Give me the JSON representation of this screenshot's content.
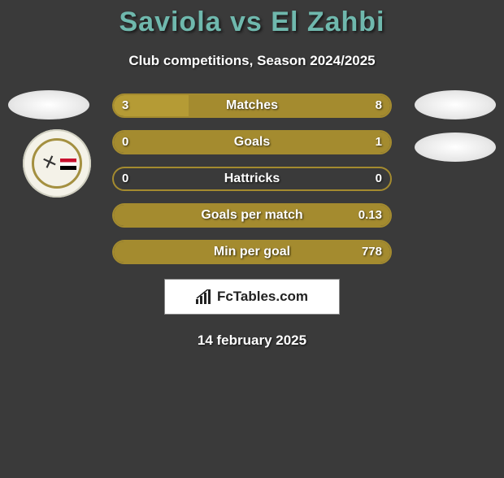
{
  "title": "Saviola vs El Zahbi",
  "subtitle": "Club competitions, Season 2024/2025",
  "colors": {
    "heading": "#6fb8ad",
    "primary": "#a48b2f",
    "primary_light": "#b59b35",
    "background": "#3a3a3a",
    "track_bg": "#3a3a3a"
  },
  "bars": [
    {
      "label": "Matches",
      "left": "3",
      "right": "8",
      "left_pct": 27,
      "right_pct": 73
    },
    {
      "label": "Goals",
      "left": "0",
      "right": "1",
      "left_pct": 0,
      "right_pct": 100
    },
    {
      "label": "Hattricks",
      "left": "0",
      "right": "0",
      "left_pct": 0,
      "right_pct": 0
    },
    {
      "label": "Goals per match",
      "left": "",
      "right": "0.13",
      "left_pct": 0,
      "right_pct": 100
    },
    {
      "label": "Min per goal",
      "left": "",
      "right": "778",
      "left_pct": 0,
      "right_pct": 100
    }
  ],
  "brand": "FcTables.com",
  "date": "14 february 2025"
}
